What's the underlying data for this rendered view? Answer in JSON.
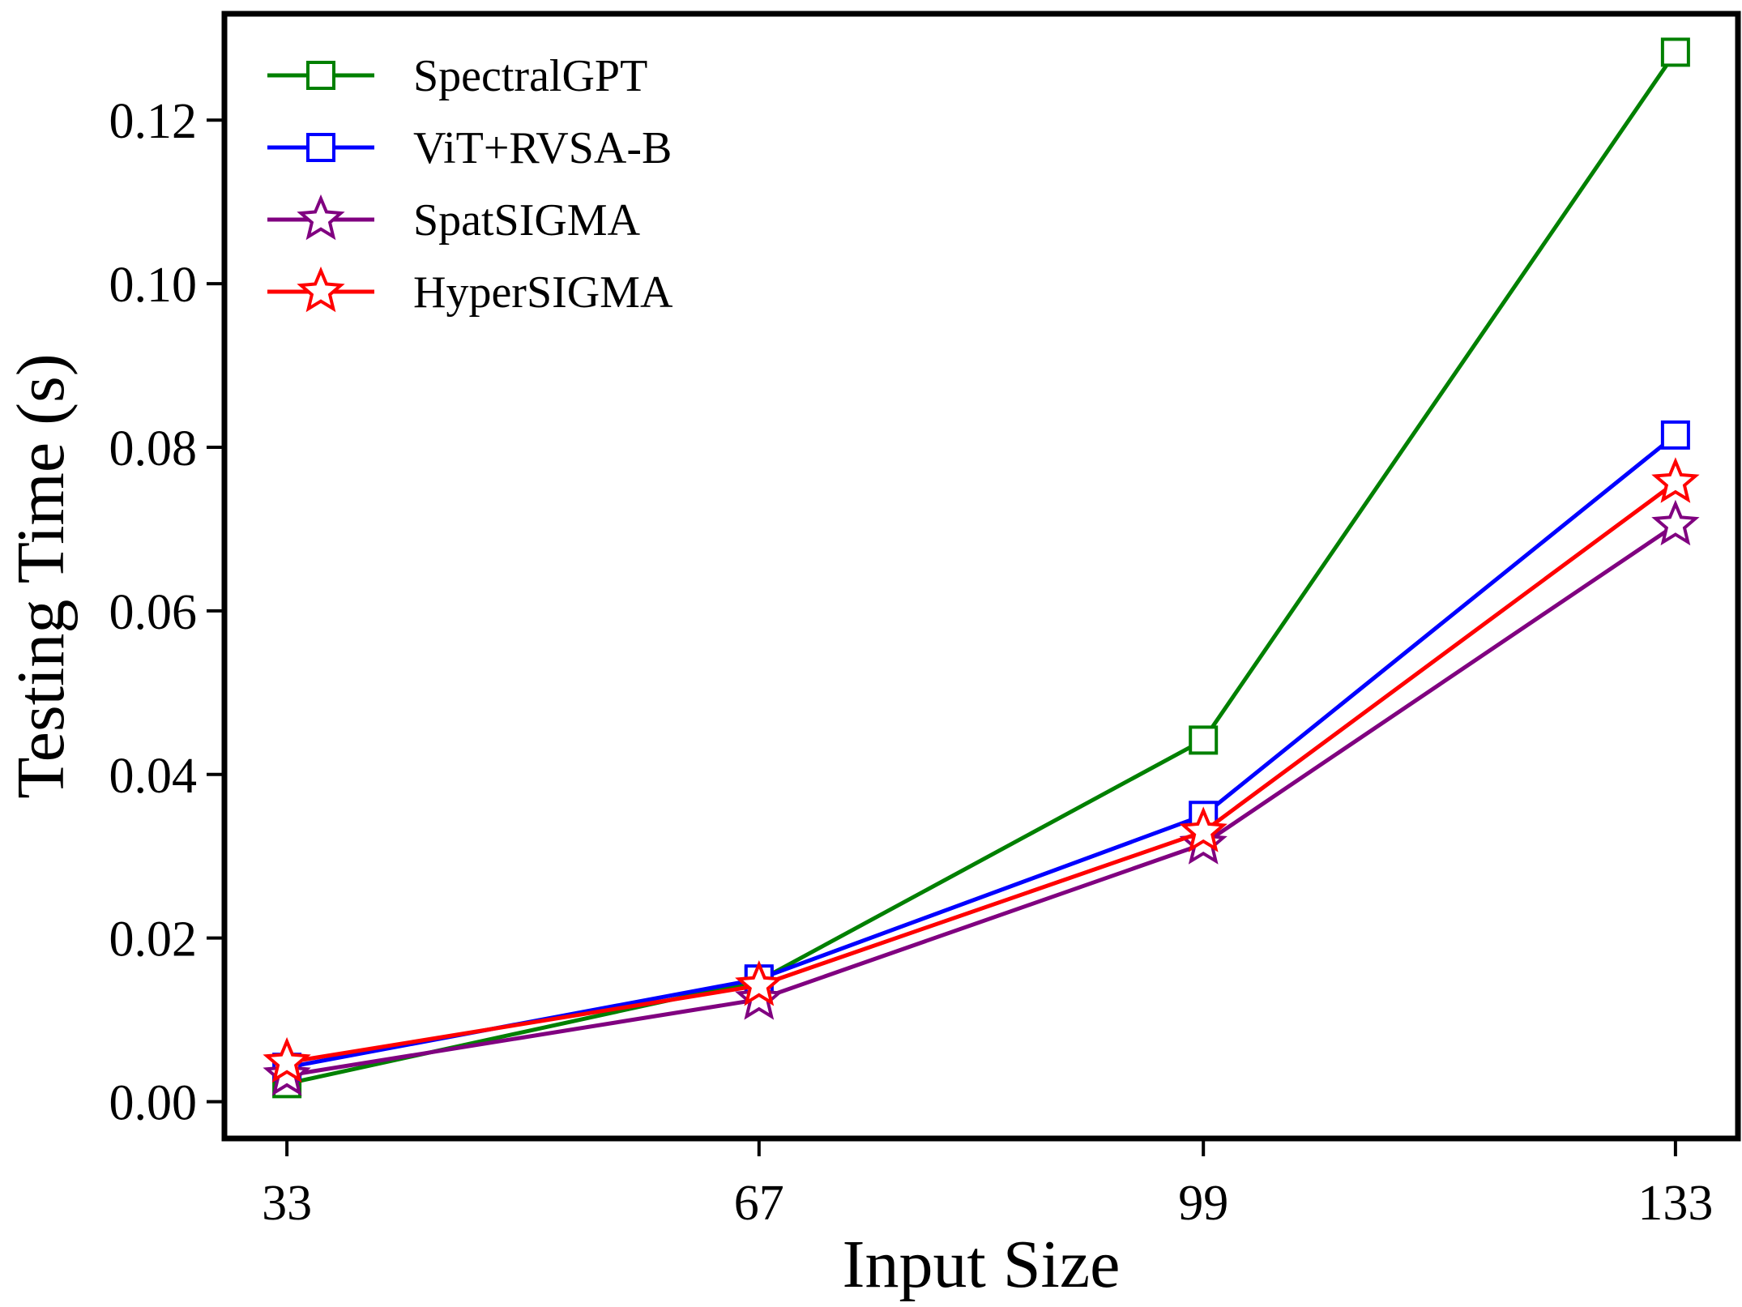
{
  "chart_data": {
    "type": "line",
    "title": "",
    "xlabel": "Input Size",
    "ylabel": "Testing Time (s)",
    "categories": [
      "33",
      "67",
      "99",
      "133"
    ],
    "x": [
      33,
      67,
      99,
      133
    ],
    "xticks": [
      "33",
      "67",
      "99",
      "133"
    ],
    "ylim": [
      -0.0045,
      0.133
    ],
    "yticks": [
      "0.00",
      "0.02",
      "0.04",
      "0.06",
      "0.08",
      "0.10",
      "0.12"
    ],
    "grid": false,
    "legend_position": "top-left",
    "series": [
      {
        "name": "SpectralGPT",
        "color": "#008000",
        "marker": "square",
        "values": [
          0.0022,
          0.0148,
          0.0442,
          0.1283
        ]
      },
      {
        "name": "ViT+RVSA-B",
        "color": "#0000ff",
        "marker": "square",
        "values": [
          0.0042,
          0.015,
          0.035,
          0.0815
        ]
      },
      {
        "name": "SpatSIGMA",
        "color": "#800080",
        "marker": "star",
        "values": [
          0.0032,
          0.0125,
          0.0315,
          0.0705
        ]
      },
      {
        "name": "HyperSIGMA",
        "color": "#ff0000",
        "marker": "star",
        "values": [
          0.0048,
          0.0142,
          0.033,
          0.0757
        ]
      }
    ]
  }
}
